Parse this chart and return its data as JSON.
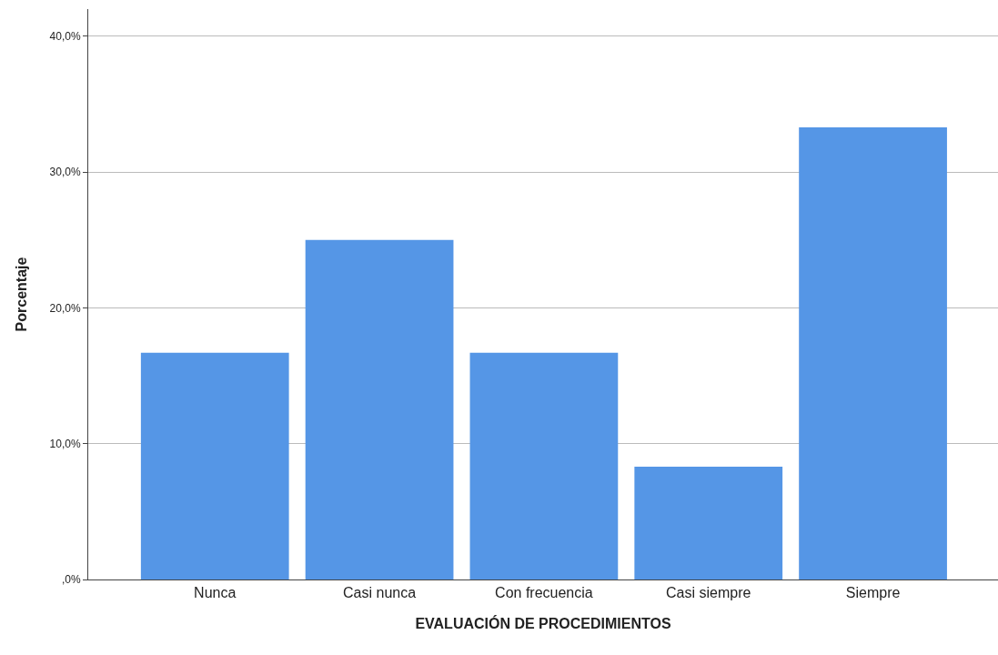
{
  "chart_data": {
    "type": "bar",
    "xlabel": "EVALUACIÓN DE PROCEDIMIENTOS",
    "ylabel": "Porcentaje",
    "categories": [
      "Nunca",
      "Casi nunca",
      "Con frecuencia",
      "Casi siempre",
      "Siempre"
    ],
    "values": [
      16.7,
      25.0,
      16.7,
      8.3,
      33.3
    ],
    "color": "#5596e6",
    "ylim": [
      0,
      42
    ],
    "yticks": [
      {
        "value": 0,
        "label": ",0%"
      },
      {
        "value": 10,
        "label": "10,0%"
      },
      {
        "value": 20,
        "label": "20,0%"
      },
      {
        "value": 30,
        "label": "30,0%"
      },
      {
        "value": 40,
        "label": "40,0%"
      }
    ],
    "grid": "y"
  }
}
